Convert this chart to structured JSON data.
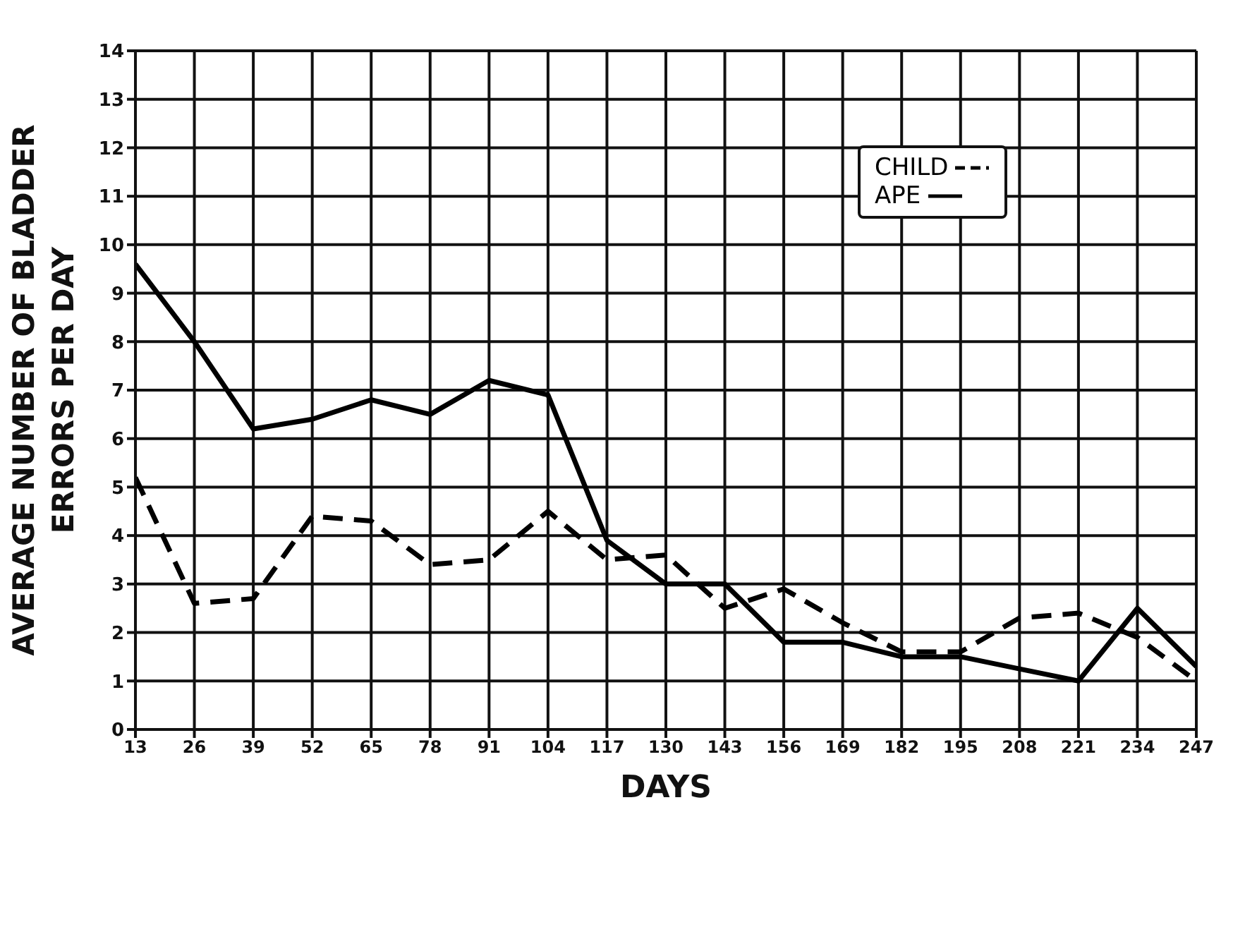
{
  "chart_data": {
    "type": "line",
    "xlabel": "DAYS",
    "ylabel": "AVERAGE NUMBER OF BLADDER ERRORS PER DAY",
    "x": [
      13,
      26,
      39,
      52,
      65,
      78,
      91,
      104,
      117,
      130,
      143,
      156,
      169,
      182,
      195,
      208,
      221,
      234,
      247
    ],
    "series": [
      {
        "name": "CHILD",
        "color": "#000000",
        "line_style": "dashed",
        "values": [
          5.2,
          2.6,
          2.7,
          4.4,
          4.3,
          3.4,
          3.5,
          4.5,
          3.5,
          3.6,
          2.5,
          2.9,
          2.2,
          1.6,
          1.6,
          2.3,
          2.4,
          1.9,
          1.0
        ]
      },
      {
        "name": "APE",
        "color": "#000000",
        "line_style": "solid",
        "values": [
          9.6,
          8.0,
          6.2,
          6.4,
          6.8,
          6.5,
          7.2,
          6.9,
          3.9,
          3.0,
          3.0,
          1.8,
          1.8,
          1.5,
          1.5,
          1.25,
          1.0,
          2.5,
          1.3
        ]
      }
    ],
    "xlim": [
      13,
      247
    ],
    "xticks": [
      13,
      26,
      39,
      52,
      65,
      78,
      91,
      104,
      117,
      130,
      143,
      156,
      169,
      182,
      195,
      208,
      221,
      234,
      247
    ],
    "ylim": [
      0,
      14
    ],
    "yticks": [
      0,
      1,
      2,
      3,
      4,
      5,
      6,
      7,
      8,
      9,
      10,
      11,
      12,
      13,
      14
    ],
    "grid": true,
    "legend": "top right",
    "marker": "none"
  }
}
